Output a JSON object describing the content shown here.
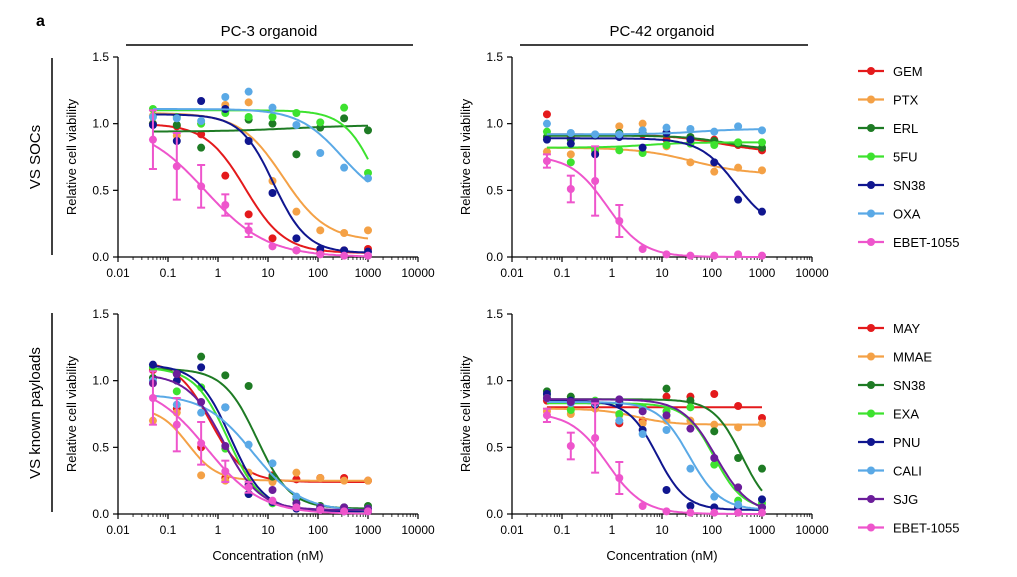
{
  "panel_label": "a",
  "column_headers": [
    "PC-3 organoid",
    "PC-42 organoid"
  ],
  "row_labels": [
    "VS SOCs",
    "VS known payloads"
  ],
  "x_axis_label": "Concentration (nM)",
  "legends": [
    [
      {
        "name": "GEM",
        "color": "#e41a1c"
      },
      {
        "name": "PTX",
        "color": "#f4a146"
      },
      {
        "name": "ERL",
        "color": "#1e7b24"
      },
      {
        "name": "5FU",
        "color": "#3de22f"
      },
      {
        "name": "SN38",
        "color": "#10168f"
      },
      {
        "name": "OXA",
        "color": "#5aa9e6"
      },
      {
        "name": "EBET-1055",
        "color": "#ee55cc"
      }
    ],
    [
      {
        "name": "MAY",
        "color": "#e41a1c"
      },
      {
        "name": "MMAE",
        "color": "#f4a146"
      },
      {
        "name": "SN38",
        "color": "#1e7b24"
      },
      {
        "name": "EXA",
        "color": "#3de22f"
      },
      {
        "name": "PNU",
        "color": "#10168f"
      },
      {
        "name": "CALI",
        "color": "#5aa9e6"
      },
      {
        "name": "SJG",
        "color": "#6b1d9a"
      },
      {
        "name": "EBET-1055",
        "color": "#ee55cc"
      }
    ]
  ],
  "chart_data": [
    {
      "type": "scatter",
      "title": "",
      "xlabel": "",
      "ylabel": "Relative cell viability",
      "xscale": "log",
      "xlim": [
        0.01,
        10000
      ],
      "ylim": [
        0,
        1.5
      ],
      "x_ticks": [
        "0.01",
        "0.1",
        "1",
        "10",
        "100",
        "1000",
        "10000"
      ],
      "y_ticks": [
        "0.0",
        "0.5",
        "1.0",
        "1.5"
      ],
      "x": [
        0.05,
        0.15,
        0.46,
        1.4,
        4.1,
        12.3,
        37,
        111,
        333,
        1000
      ],
      "series": [
        {
          "name": "GEM",
          "color": "#e41a1c",
          "values": [
            1.0,
            0.98,
            0.92,
            0.61,
            0.32,
            0.14,
            0.05,
            0.03,
            0.05,
            0.06
          ],
          "fit": {
            "top": 1.0,
            "bottom": 0.03,
            "ic50": 3.5,
            "hill": 1.1
          }
        },
        {
          "name": "PTX",
          "color": "#f4a146",
          "values": [
            1.06,
            0.91,
            1.0,
            1.14,
            1.16,
            0.57,
            0.34,
            0.2,
            0.18,
            0.2
          ],
          "fit": {
            "top": 1.08,
            "bottom": 0.12,
            "ic50": 20,
            "hill": 1.0
          }
        },
        {
          "name": "ERL",
          "color": "#1e7b24",
          "values": [
            1.0,
            0.99,
            0.82,
            1.1,
            1.03,
            1.0,
            0.77,
            0.97,
            1.04,
            0.95
          ],
          "fit": {
            "top": 0.94,
            "bottom": 0.99,
            "ic50": 30,
            "hill": 0.6
          }
        },
        {
          "name": "5FU",
          "color": "#3de22f",
          "values": [
            1.11,
            1.05,
            1.0,
            1.08,
            1.05,
            1.05,
            1.08,
            1.01,
            1.12,
            0.63
          ],
          "fit": {
            "top": 1.1,
            "bottom": 0.0,
            "ic50": 1700,
            "hill": 1.3
          }
        },
        {
          "name": "SN38",
          "color": "#10168f",
          "values": [
            0.99,
            0.87,
            1.17,
            1.11,
            0.87,
            0.48,
            0.14,
            0.06,
            0.05,
            0.04
          ],
          "fit": {
            "top": 1.07,
            "bottom": 0.03,
            "ic50": 13,
            "hill": 1.3
          }
        },
        {
          "name": "OXA",
          "color": "#5aa9e6",
          "values": [
            1.05,
            1.04,
            1.02,
            1.2,
            1.24,
            1.12,
            0.99,
            0.78,
            0.67,
            0.59
          ],
          "fit": {
            "top": 1.11,
            "bottom": 0.4,
            "ic50": 300,
            "hill": 1.0
          }
        },
        {
          "name": "EBET-1055",
          "color": "#ee55cc",
          "values": [
            0.88,
            0.68,
            0.53,
            0.39,
            0.2,
            0.08,
            0.05,
            0.02,
            0.01,
            0.01
          ],
          "error": [
            0.22,
            0.25,
            0.16,
            0.08,
            0.05,
            0,
            0,
            0,
            0,
            0
          ],
          "fit": {
            "top": 1.0,
            "bottom": 0.0,
            "ic50": 0.55,
            "hill": 0.7
          }
        }
      ]
    },
    {
      "type": "scatter",
      "title": "",
      "xlabel": "",
      "ylabel": "Relative cell viability",
      "xscale": "log",
      "xlim": [
        0.01,
        10000
      ],
      "ylim": [
        0,
        1.5
      ],
      "x_ticks": [
        "0.01",
        "0.1",
        "1",
        "10",
        "100",
        "1000",
        "10000"
      ],
      "y_ticks": [
        "0.0",
        "0.5",
        "1.0",
        "1.5"
      ],
      "x": [
        0.05,
        0.15,
        0.46,
        1.4,
        4.1,
        12.3,
        37,
        111,
        333,
        1000
      ],
      "series": [
        {
          "name": "GEM",
          "color": "#e41a1c",
          "values": [
            1.07,
            0.9,
            0.91,
            0.92,
            0.92,
            0.88,
            0.86,
            0.88,
            0.84,
            0.8
          ],
          "fit": {
            "top": 0.92,
            "bottom": 0.78,
            "ic50": 150,
            "hill": 0.8
          }
        },
        {
          "name": "PTX",
          "color": "#f4a146",
          "values": [
            0.79,
            0.77,
            0.79,
            0.98,
            1.0,
            0.83,
            0.71,
            0.64,
            0.67,
            0.65
          ],
          "fit": {
            "top": 0.82,
            "bottom": 0.62,
            "ic50": 40,
            "hill": 0.8
          }
        },
        {
          "name": "ERL",
          "color": "#1e7b24",
          "values": [
            0.9,
            0.88,
            0.91,
            0.93,
            0.93,
            0.93,
            0.9,
            0.87,
            0.85,
            0.82
          ],
          "fit": {
            "top": 0.91,
            "bottom": 0.8,
            "ic50": 200,
            "hill": 1.0
          }
        },
        {
          "name": "5FU",
          "color": "#3de22f",
          "values": [
            0.94,
            0.71,
            0.8,
            0.8,
            0.78,
            0.84,
            0.85,
            0.84,
            0.86,
            0.86
          ],
          "fit": {
            "top": 0.82,
            "bottom": 0.86,
            "ic50": 5,
            "hill": 1.0
          }
        },
        {
          "name": "SN38",
          "color": "#10168f",
          "values": [
            0.88,
            0.85,
            0.77,
            0.9,
            0.82,
            0.93,
            0.88,
            0.71,
            0.43,
            0.34
          ],
          "fit": {
            "top": 0.89,
            "bottom": 0.2,
            "ic50": 300,
            "hill": 1.2
          }
        },
        {
          "name": "OXA",
          "color": "#5aa9e6",
          "values": [
            1.0,
            0.93,
            0.92,
            0.92,
            0.95,
            0.97,
            0.96,
            0.94,
            0.98,
            0.95
          ],
          "fit": {
            "top": 0.92,
            "bottom": 0.96,
            "ic50": 50,
            "hill": 1.0
          }
        },
        {
          "name": "EBET-1055",
          "color": "#ee55cc",
          "values": [
            0.72,
            0.51,
            0.57,
            0.27,
            0.06,
            0.02,
            0.01,
            0.01,
            0.02,
            0.01
          ],
          "error": [
            0.05,
            0.1,
            0.26,
            0.12,
            0,
            0,
            0,
            0,
            0,
            0
          ],
          "fit": {
            "top": 0.76,
            "bottom": 0.0,
            "ic50": 0.8,
            "hill": 1.2
          }
        }
      ]
    },
    {
      "type": "scatter",
      "title": "",
      "xlabel": "Concentration (nM)",
      "ylabel": "Relative cell viability",
      "xscale": "log",
      "xlim": [
        0.01,
        10000
      ],
      "ylim": [
        0,
        1.5
      ],
      "x_ticks": [
        "0.01",
        "0.1",
        "1",
        "10",
        "100",
        "1000",
        "10000"
      ],
      "y_ticks": [
        "0.0",
        "0.5",
        "1.0",
        "1.5"
      ],
      "x": [
        0.05,
        0.15,
        0.46,
        1.4,
        4.1,
        12.3,
        37,
        111,
        333,
        1000
      ],
      "series": [
        {
          "name": "MAY",
          "color": "#e41a1c",
          "values": [
            1.08,
            0.79,
            0.5,
            0.27,
            0.22,
            0.29,
            0.26,
            0.27,
            0.27,
            0.25
          ],
          "fit": {
            "top": 1.15,
            "bottom": 0.24,
            "ic50": 0.7,
            "hill": 1.3
          }
        },
        {
          "name": "MMAE",
          "color": "#f4a146",
          "values": [
            0.7,
            0.76,
            0.29,
            0.25,
            0.31,
            0.24,
            0.31,
            0.27,
            0.25,
            0.25
          ],
          "fit": {
            "top": 0.8,
            "bottom": 0.25,
            "ic50": 0.25,
            "hill": 1.5
          }
        },
        {
          "name": "SN38",
          "color": "#1e7b24",
          "values": [
            1.02,
            1.05,
            1.18,
            1.04,
            0.96,
            0.28,
            0.11,
            0.06,
            0.05,
            0.06
          ],
          "fit": {
            "top": 1.09,
            "bottom": 0.04,
            "ic50": 6,
            "hill": 1.3
          }
        },
        {
          "name": "EXA",
          "color": "#3de22f",
          "values": [
            1.1,
            0.92,
            0.95,
            0.49,
            0.15,
            0.08,
            0.05,
            0.03,
            0.03,
            0.03
          ],
          "fit": {
            "top": 1.1,
            "bottom": 0.02,
            "ic50": 1.6,
            "hill": 1.3
          }
        },
        {
          "name": "PNU",
          "color": "#10168f",
          "values": [
            1.12,
            1.0,
            1.1,
            0.8,
            0.15,
            0.09,
            0.04,
            0.03,
            0.02,
            0.02
          ],
          "fit": {
            "top": 1.12,
            "bottom": 0.02,
            "ic50": 1.8,
            "hill": 1.3
          }
        },
        {
          "name": "CALI",
          "color": "#5aa9e6",
          "values": [
            1.0,
            0.82,
            0.76,
            0.8,
            0.52,
            0.38,
            0.13,
            0.05,
            0.04,
            0.04
          ],
          "fit": {
            "top": 0.9,
            "bottom": 0.02,
            "ic50": 5,
            "hill": 0.9
          }
        },
        {
          "name": "SJG",
          "color": "#6b1d9a",
          "values": [
            0.98,
            1.05,
            0.84,
            0.51,
            0.22,
            0.18,
            0.08,
            0.05,
            0.05,
            0.04
          ],
          "fit": {
            "top": 1.05,
            "bottom": 0.03,
            "ic50": 1.3,
            "hill": 1.2
          }
        },
        {
          "name": "EBET-1055",
          "color": "#ee55cc",
          "values": [
            0.87,
            0.67,
            0.53,
            0.32,
            0.2,
            0.1,
            0.05,
            0.03,
            0.02,
            0.02
          ],
          "error": [
            0.2,
            0.2,
            0.16,
            0.08,
            0.04,
            0,
            0,
            0,
            0,
            0
          ],
          "fit": {
            "top": 0.98,
            "bottom": 0.0,
            "ic50": 0.6,
            "hill": 0.8
          }
        }
      ]
    },
    {
      "type": "scatter",
      "title": "",
      "xlabel": "Concentration (nM)",
      "ylabel": "Relative cell viability",
      "xscale": "log",
      "xlim": [
        0.01,
        10000
      ],
      "ylim": [
        0,
        1.5
      ],
      "x_ticks": [
        "0.01",
        "0.1",
        "1",
        "10",
        "100",
        "1000",
        "10000"
      ],
      "y_ticks": [
        "0.0",
        "0.5",
        "1.0",
        "1.5"
      ],
      "x": [
        0.05,
        0.15,
        0.46,
        1.4,
        4.1,
        12.3,
        37,
        111,
        333,
        1000
      ],
      "series": [
        {
          "name": "MAY",
          "color": "#e41a1c",
          "values": [
            0.85,
            0.85,
            0.8,
            0.68,
            0.7,
            0.88,
            0.88,
            0.9,
            0.81,
            0.72
          ],
          "fit": {
            "top": 0.8,
            "bottom": 0.8,
            "ic50": 10,
            "hill": 1.0
          }
        },
        {
          "name": "MMAE",
          "color": "#f4a146",
          "values": [
            0.77,
            0.75,
            0.79,
            0.74,
            0.68,
            0.7,
            0.7,
            0.67,
            0.65,
            0.68
          ],
          "fit": {
            "top": 0.79,
            "bottom": 0.67,
            "ic50": 3,
            "hill": 1.2
          }
        },
        {
          "name": "SN38",
          "color": "#1e7b24",
          "values": [
            0.92,
            0.88,
            0.82,
            0.84,
            0.8,
            0.94,
            0.85,
            0.62,
            0.42,
            0.34
          ],
          "fit": {
            "top": 0.86,
            "bottom": 0.0,
            "ic50": 400,
            "hill": 1.5
          }
        },
        {
          "name": "EXA",
          "color": "#3de22f",
          "values": [
            0.89,
            0.78,
            0.85,
            0.75,
            0.8,
            0.77,
            0.8,
            0.37,
            0.1,
            0.08
          ],
          "fit": {
            "top": 0.83,
            "bottom": 0.03,
            "ic50": 110,
            "hill": 1.5
          }
        },
        {
          "name": "PNU",
          "color": "#10168f",
          "values": [
            0.9,
            0.85,
            0.82,
            0.83,
            0.63,
            0.18,
            0.06,
            0.05,
            0.05,
            0.11
          ],
          "fit": {
            "top": 0.85,
            "bottom": 0.03,
            "ic50": 8,
            "hill": 1.5
          }
        },
        {
          "name": "CALI",
          "color": "#5aa9e6",
          "values": [
            0.87,
            0.83,
            0.83,
            0.7,
            0.6,
            0.63,
            0.34,
            0.13,
            0.07,
            0.05
          ],
          "fit": {
            "top": 0.84,
            "bottom": 0.03,
            "ic50": 35,
            "hill": 1.4
          }
        },
        {
          "name": "SJG",
          "color": "#6b1d9a",
          "values": [
            0.87,
            0.84,
            0.84,
            0.86,
            0.77,
            0.74,
            0.64,
            0.42,
            0.2,
            0.05
          ],
          "fit": {
            "top": 0.86,
            "bottom": 0.0,
            "ic50": 120,
            "hill": 1.3
          }
        },
        {
          "name": "EBET-1055",
          "color": "#ee55cc",
          "values": [
            0.74,
            0.51,
            0.57,
            0.27,
            0.06,
            0.02,
            0.01,
            0.01,
            0.01,
            0.01
          ],
          "error": [
            0.05,
            0.1,
            0.26,
            0.12,
            0,
            0,
            0,
            0,
            0,
            0
          ],
          "fit": {
            "top": 0.76,
            "bottom": 0.0,
            "ic50": 0.8,
            "hill": 1.2
          }
        }
      ]
    }
  ]
}
